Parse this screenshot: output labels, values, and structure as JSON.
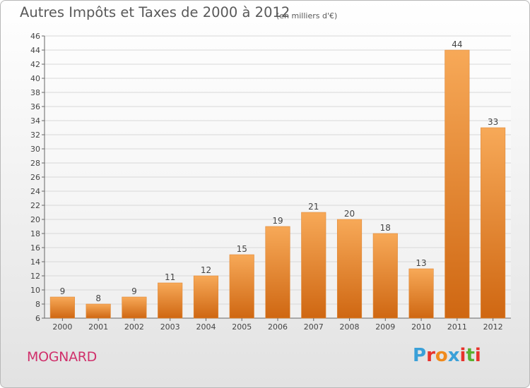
{
  "title": "Autres Impôts et Taxes de 2000 à 2012",
  "subtitle": "(en milliers d'€)",
  "place_name": "MOGNARD",
  "logo": {
    "text": "Proxiti",
    "colors": [
      "#3aa0d8",
      "#e8322c",
      "#f08a1c",
      "#3aa0d8",
      "#e8322c",
      "#58b030",
      "#e8322c"
    ]
  },
  "colors": {
    "bar_light": "#f7a958",
    "bar_dark": "#cf6712",
    "grid": "#d8d8d8",
    "axis": "#666666"
  },
  "chart_data": {
    "type": "bar",
    "categories": [
      "2000",
      "2001",
      "2002",
      "2003",
      "2004",
      "2005",
      "2006",
      "2007",
      "2008",
      "2009",
      "2010",
      "2011",
      "2012"
    ],
    "values": [
      9,
      8,
      9,
      11,
      12,
      15,
      19,
      21,
      20,
      18,
      13,
      44,
      33
    ],
    "data_labels": [
      "9",
      "8",
      "9",
      "11",
      "12",
      "15",
      "19",
      "21",
      "20",
      "18",
      "13",
      "44",
      "33"
    ],
    "ylim": [
      6,
      46
    ],
    "yticks": [
      "6",
      "8",
      "10",
      "12",
      "14",
      "16",
      "18",
      "20",
      "22",
      "24",
      "26",
      "28",
      "30",
      "32",
      "34",
      "36",
      "38",
      "40",
      "42",
      "44",
      "46"
    ],
    "grid": true,
    "legend": "none"
  }
}
